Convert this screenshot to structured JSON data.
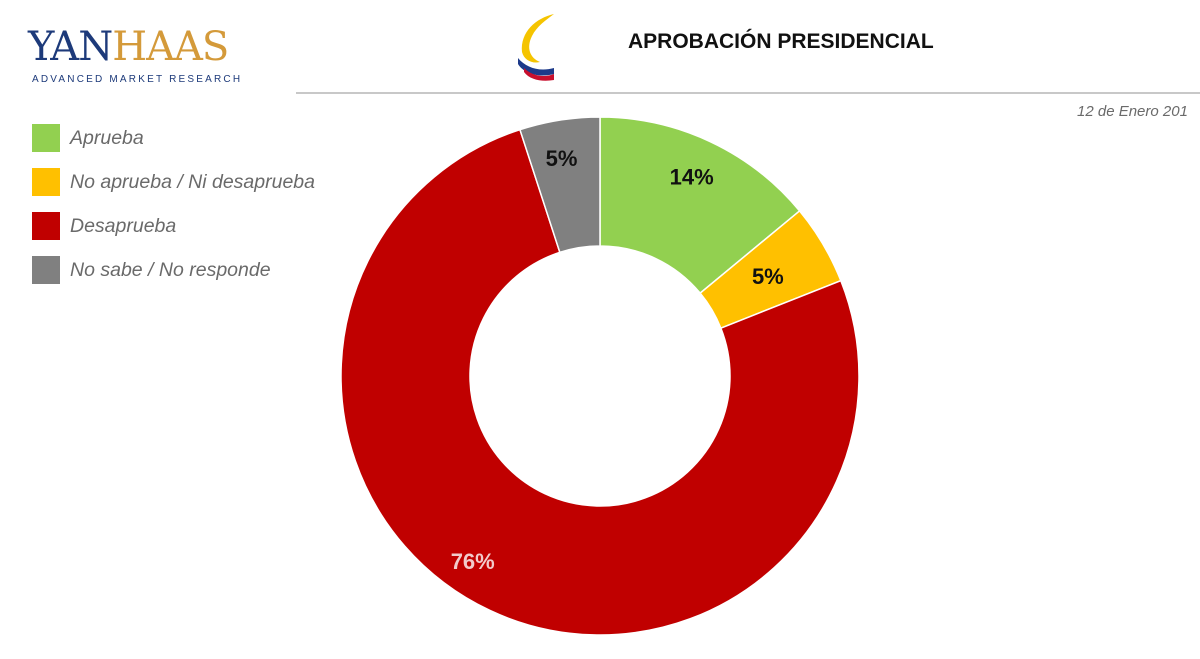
{
  "header": {
    "brand": {
      "word_part1": "YAN",
      "word_part2": "HAAS",
      "tagline": "ADVANCED MARKET RESEARCH"
    },
    "title": "APROBACIÓN PRESIDENCIAL",
    "date": "12 de Enero 201"
  },
  "colors": {
    "brand_navy": "#1d3a7a",
    "brand_gold": "#d49a3a",
    "flag_yellow": "#f5c400",
    "flag_blue": "#1d3a8a",
    "flag_red": "#c8102e"
  },
  "icons": {
    "emblem": "colombia-flag-emblem-icon"
  },
  "chart_data": {
    "type": "pie",
    "donut": true,
    "title": "APROBACIÓN PRESIDENCIAL",
    "legend_position": "top-left",
    "slices": [
      {
        "label": "Aprueba",
        "value": 14,
        "display": "14%",
        "color": "#92d050",
        "text_color": "#111111"
      },
      {
        "label": "No aprueba / Ni desaprueba",
        "value": 5,
        "display": "5%",
        "color": "#ffc000",
        "text_color": "#111111"
      },
      {
        "label": "Desaprueba",
        "value": 76,
        "display": "76%",
        "color": "#c00000",
        "text_color": "#f2caca"
      },
      {
        "label": "No sabe  /  No responde",
        "value": 5,
        "display": "5%",
        "color": "#808080",
        "text_color": "#111111"
      }
    ]
  }
}
